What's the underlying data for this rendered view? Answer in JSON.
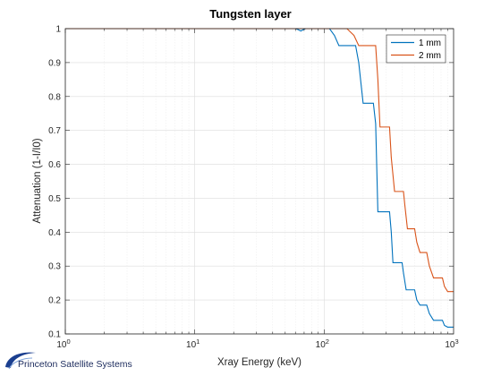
{
  "chart_data": {
    "type": "line",
    "title": "Tungsten layer",
    "xlabel": "Xray Energy (keV)",
    "ylabel": "Attenuation (1-I/I0)",
    "xscale": "log",
    "xlim": [
      1,
      1000
    ],
    "ylim": [
      0.1,
      1
    ],
    "x_tick_labels": [
      {
        "base": "10",
        "exp": "0"
      },
      {
        "base": "10",
        "exp": "1"
      },
      {
        "base": "10",
        "exp": "2"
      },
      {
        "base": "10",
        "exp": "3"
      }
    ],
    "y_ticks": [
      "0.1",
      "0.2",
      "0.3",
      "0.4",
      "0.5",
      "0.6",
      "0.7",
      "0.8",
      "0.9",
      "1"
    ],
    "grid": true,
    "legend_position": "top-right",
    "series": [
      {
        "name": "1 mm",
        "color": "#0072bd",
        "x": [
          1,
          60,
          63,
          66,
          69,
          72,
          110,
          120,
          130,
          175,
          185,
          200,
          240,
          250,
          260,
          320,
          330,
          340,
          400,
          410,
          430,
          500,
          520,
          550,
          620,
          650,
          700,
          820,
          850,
          900,
          1000
        ],
        "y": [
          1,
          1,
          0.997,
          0.993,
          0.997,
          1,
          1,
          0.98,
          0.95,
          0.95,
          0.9,
          0.78,
          0.78,
          0.72,
          0.46,
          0.46,
          0.4,
          0.31,
          0.31,
          0.28,
          0.23,
          0.23,
          0.2,
          0.185,
          0.185,
          0.16,
          0.14,
          0.14,
          0.125,
          0.12,
          0.12
        ]
      },
      {
        "name": "2 mm",
        "color": "#d95319",
        "x": [
          1,
          150,
          170,
          185,
          250,
          260,
          270,
          320,
          330,
          350,
          410,
          420,
          440,
          500,
          520,
          550,
          620,
          650,
          700,
          820,
          850,
          900,
          1000
        ],
        "y": [
          1,
          1,
          0.98,
          0.95,
          0.95,
          0.85,
          0.71,
          0.71,
          0.62,
          0.52,
          0.52,
          0.48,
          0.41,
          0.41,
          0.37,
          0.34,
          0.34,
          0.3,
          0.265,
          0.265,
          0.24,
          0.225,
          0.225
        ]
      }
    ]
  },
  "footer": {
    "brand_text": "Princeton Satellite Systems"
  }
}
